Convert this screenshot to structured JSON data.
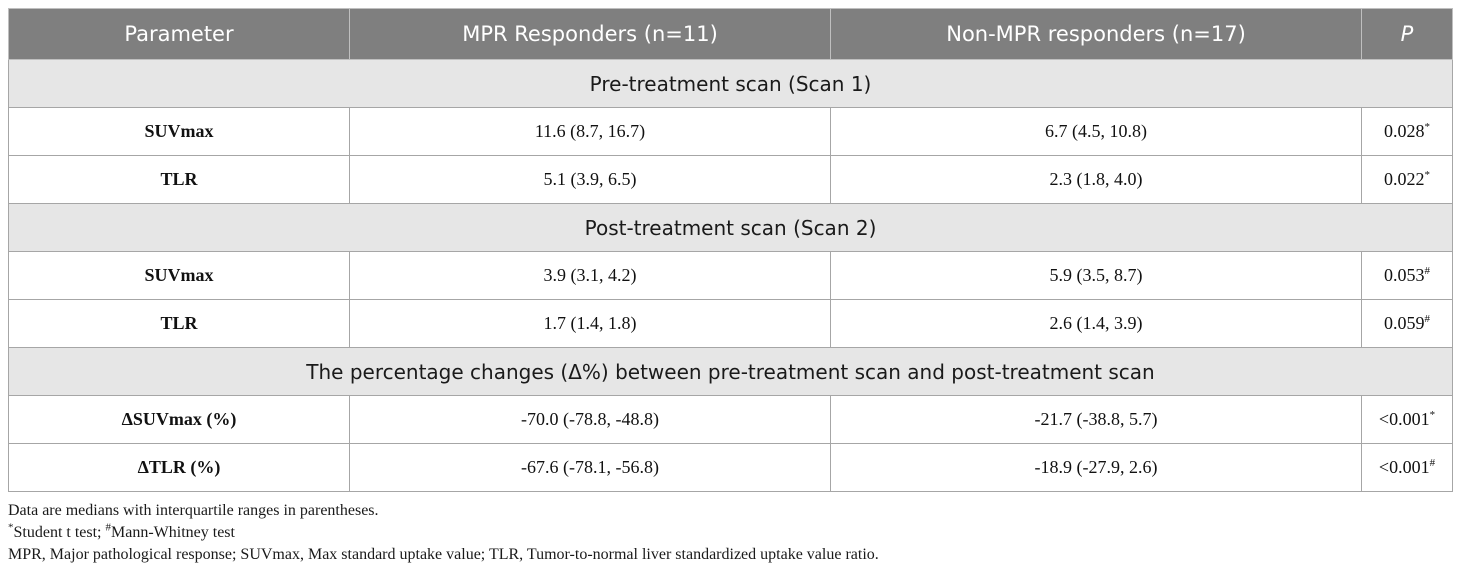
{
  "table": {
    "headers": [
      "Parameter",
      "MPR Responders (n=11)",
      "Non-MPR responders (n=17)",
      "P"
    ],
    "sections": [
      {
        "title": "Pre-treatment scan (Scan 1)",
        "rows": [
          {
            "param": "SUVmax",
            "mpr": "11.6 (8.7, 16.7)",
            "non_mpr": "6.7 (4.5, 10.8)",
            "p": "0.028",
            "p_mark": "*"
          },
          {
            "param": "TLR",
            "mpr": "5.1 (3.9, 6.5)",
            "non_mpr": "2.3 (1.8, 4.0)",
            "p": "0.022",
            "p_mark": "*"
          }
        ]
      },
      {
        "title": "Post-treatment scan (Scan 2)",
        "rows": [
          {
            "param": "SUVmax",
            "mpr": "3.9 (3.1, 4.2)",
            "non_mpr": "5.9 (3.5, 8.7)",
            "p": "0.053",
            "p_mark": "#"
          },
          {
            "param": "TLR",
            "mpr": "1.7 (1.4, 1.8)",
            "non_mpr": "2.6 (1.4, 3.9)",
            "p": "0.059",
            "p_mark": "#"
          }
        ]
      },
      {
        "title": "The percentage changes (Δ%) between pre-treatment scan and post-treatment scan",
        "rows": [
          {
            "param": "ΔSUVmax (%)",
            "mpr": "-70.0 (-78.8, -48.8)",
            "non_mpr": "-21.7 (-38.8, 5.7)",
            "p": "<0.001",
            "p_mark": "*"
          },
          {
            "param": "ΔTLR (%)",
            "mpr": "-67.6 (-78.1, -56.8)",
            "non_mpr": "-18.9 (-27.9, 2.6)",
            "p": "<0.001",
            "p_mark": "#"
          }
        ]
      }
    ]
  },
  "notes": {
    "line1": "Data are medians with interquartile ranges in parentheses.",
    "line2_mark1": "*",
    "line2_text1": "Student t test; ",
    "line2_mark2": "#",
    "line2_text2": "Mann-Whitney test",
    "line3": "MPR, Major pathological response; SUVmax, Max standard uptake value; TLR, Tumor-to-normal liver standardized uptake value ratio."
  }
}
